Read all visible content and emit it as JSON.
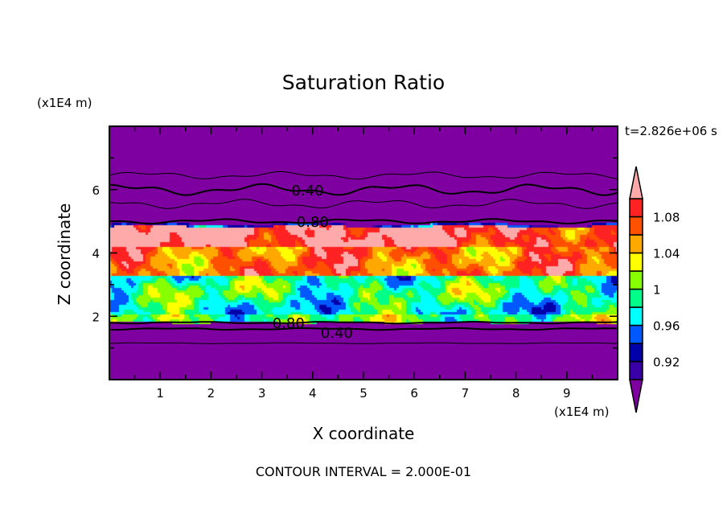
{
  "chart_data": {
    "type": "heatmap",
    "title": "Saturation Ratio",
    "xlabel": "X coordinate",
    "ylabel": "Z coordinate",
    "x_unit": "(x1E4 m)",
    "y_unit": "(x1E4 m)",
    "time_label": "t=2.826e+06 s",
    "footer": "CONTOUR INTERVAL = 2.000E-01",
    "xlim": [
      0,
      10
    ],
    "ylim": [
      0,
      8
    ],
    "x_ticks": [
      "1",
      "2",
      "3",
      "4",
      "5",
      "6",
      "7",
      "8",
      "9"
    ],
    "y_ticks": [
      "2",
      "4",
      "6"
    ],
    "colorbar": {
      "levels": [
        0.9,
        0.92,
        0.94,
        0.96,
        0.98,
        1.0,
        1.02,
        1.04,
        1.06,
        1.08,
        1.1
      ],
      "tick_labels": [
        "0.92",
        "0.96",
        "1",
        "1.04",
        "1.08"
      ],
      "tick_values": [
        0.92,
        0.96,
        1.0,
        1.04,
        1.08
      ],
      "colors": [
        "#3a00a8",
        "#0000a8",
        "#0058ff",
        "#00ffff",
        "#00ff88",
        "#88ff00",
        "#ffff00",
        "#ffa800",
        "#ff5000",
        "#ff2222"
      ],
      "under_color": "#7f00a0",
      "over_color": "#ffaaaa"
    },
    "contour_labels": [
      {
        "text": "0.40",
        "x": 3.9,
        "z": 6.0
      },
      {
        "text": "0.80",
        "x": 4.0,
        "z": 5.0
      },
      {
        "text": "0.80",
        "x": 4.0,
        "z": 1.8
      },
      {
        "text": "0.40",
        "x": 4.0,
        "z": 1.5
      }
    ]
  }
}
